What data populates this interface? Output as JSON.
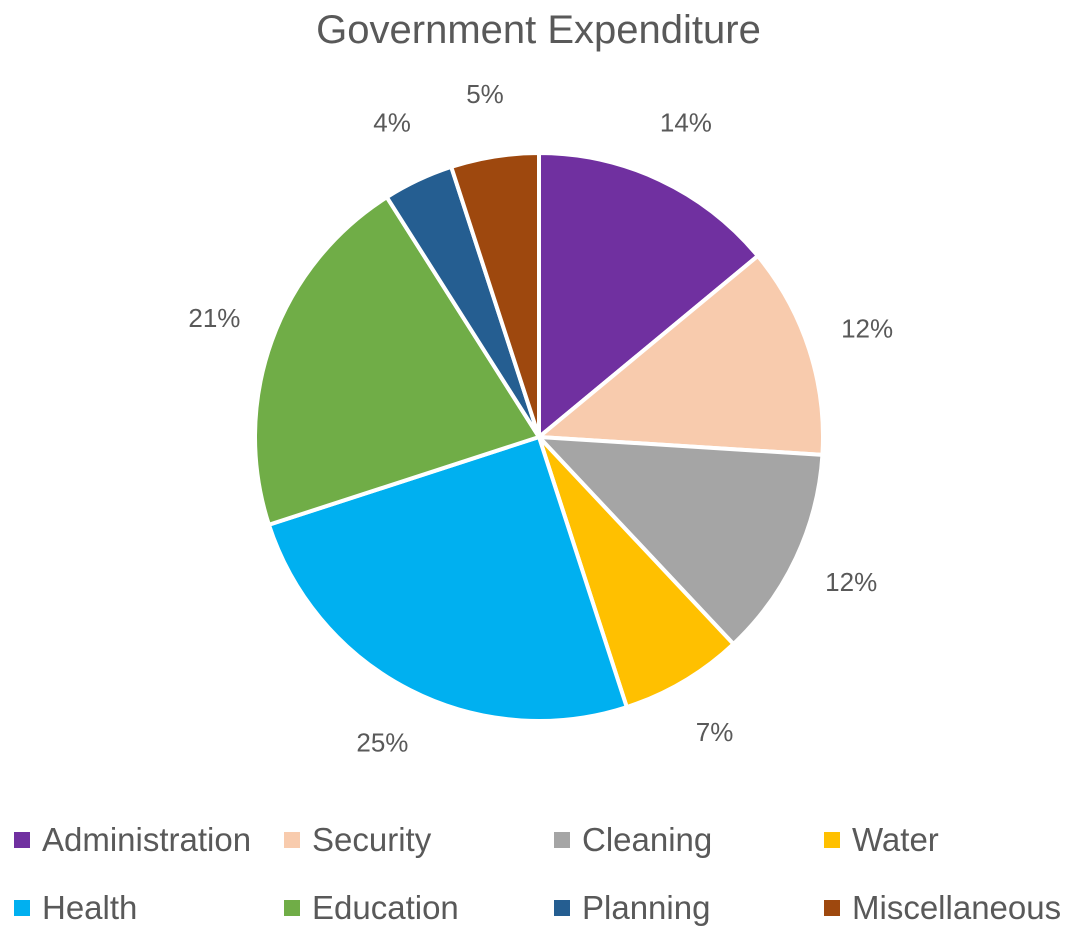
{
  "chart_data": {
    "type": "pie",
    "title": "Government Expenditure",
    "legend_position": "bottom",
    "slices": [
      {
        "name": "Administration",
        "value": 14,
        "label": "14%",
        "color": "#7030A0"
      },
      {
        "name": "Security",
        "value": 12,
        "label": "12%",
        "color": "#F8CBAD"
      },
      {
        "name": "Cleaning",
        "value": 12,
        "label": "12%",
        "color": "#A5A5A5"
      },
      {
        "name": "Water",
        "value": 7,
        "label": "7%",
        "color": "#FFC000"
      },
      {
        "name": "Health",
        "value": 25,
        "label": "25%",
        "color": "#00B0F0"
      },
      {
        "name": "Education",
        "value": 21,
        "label": "21%",
        "color": "#70AD47"
      },
      {
        "name": "Planning",
        "value": 4,
        "label": "4%",
        "color": "#255E91"
      },
      {
        "name": "Miscellaneous",
        "value": 5,
        "label": "5%",
        "color": "#9E480E"
      }
    ]
  }
}
